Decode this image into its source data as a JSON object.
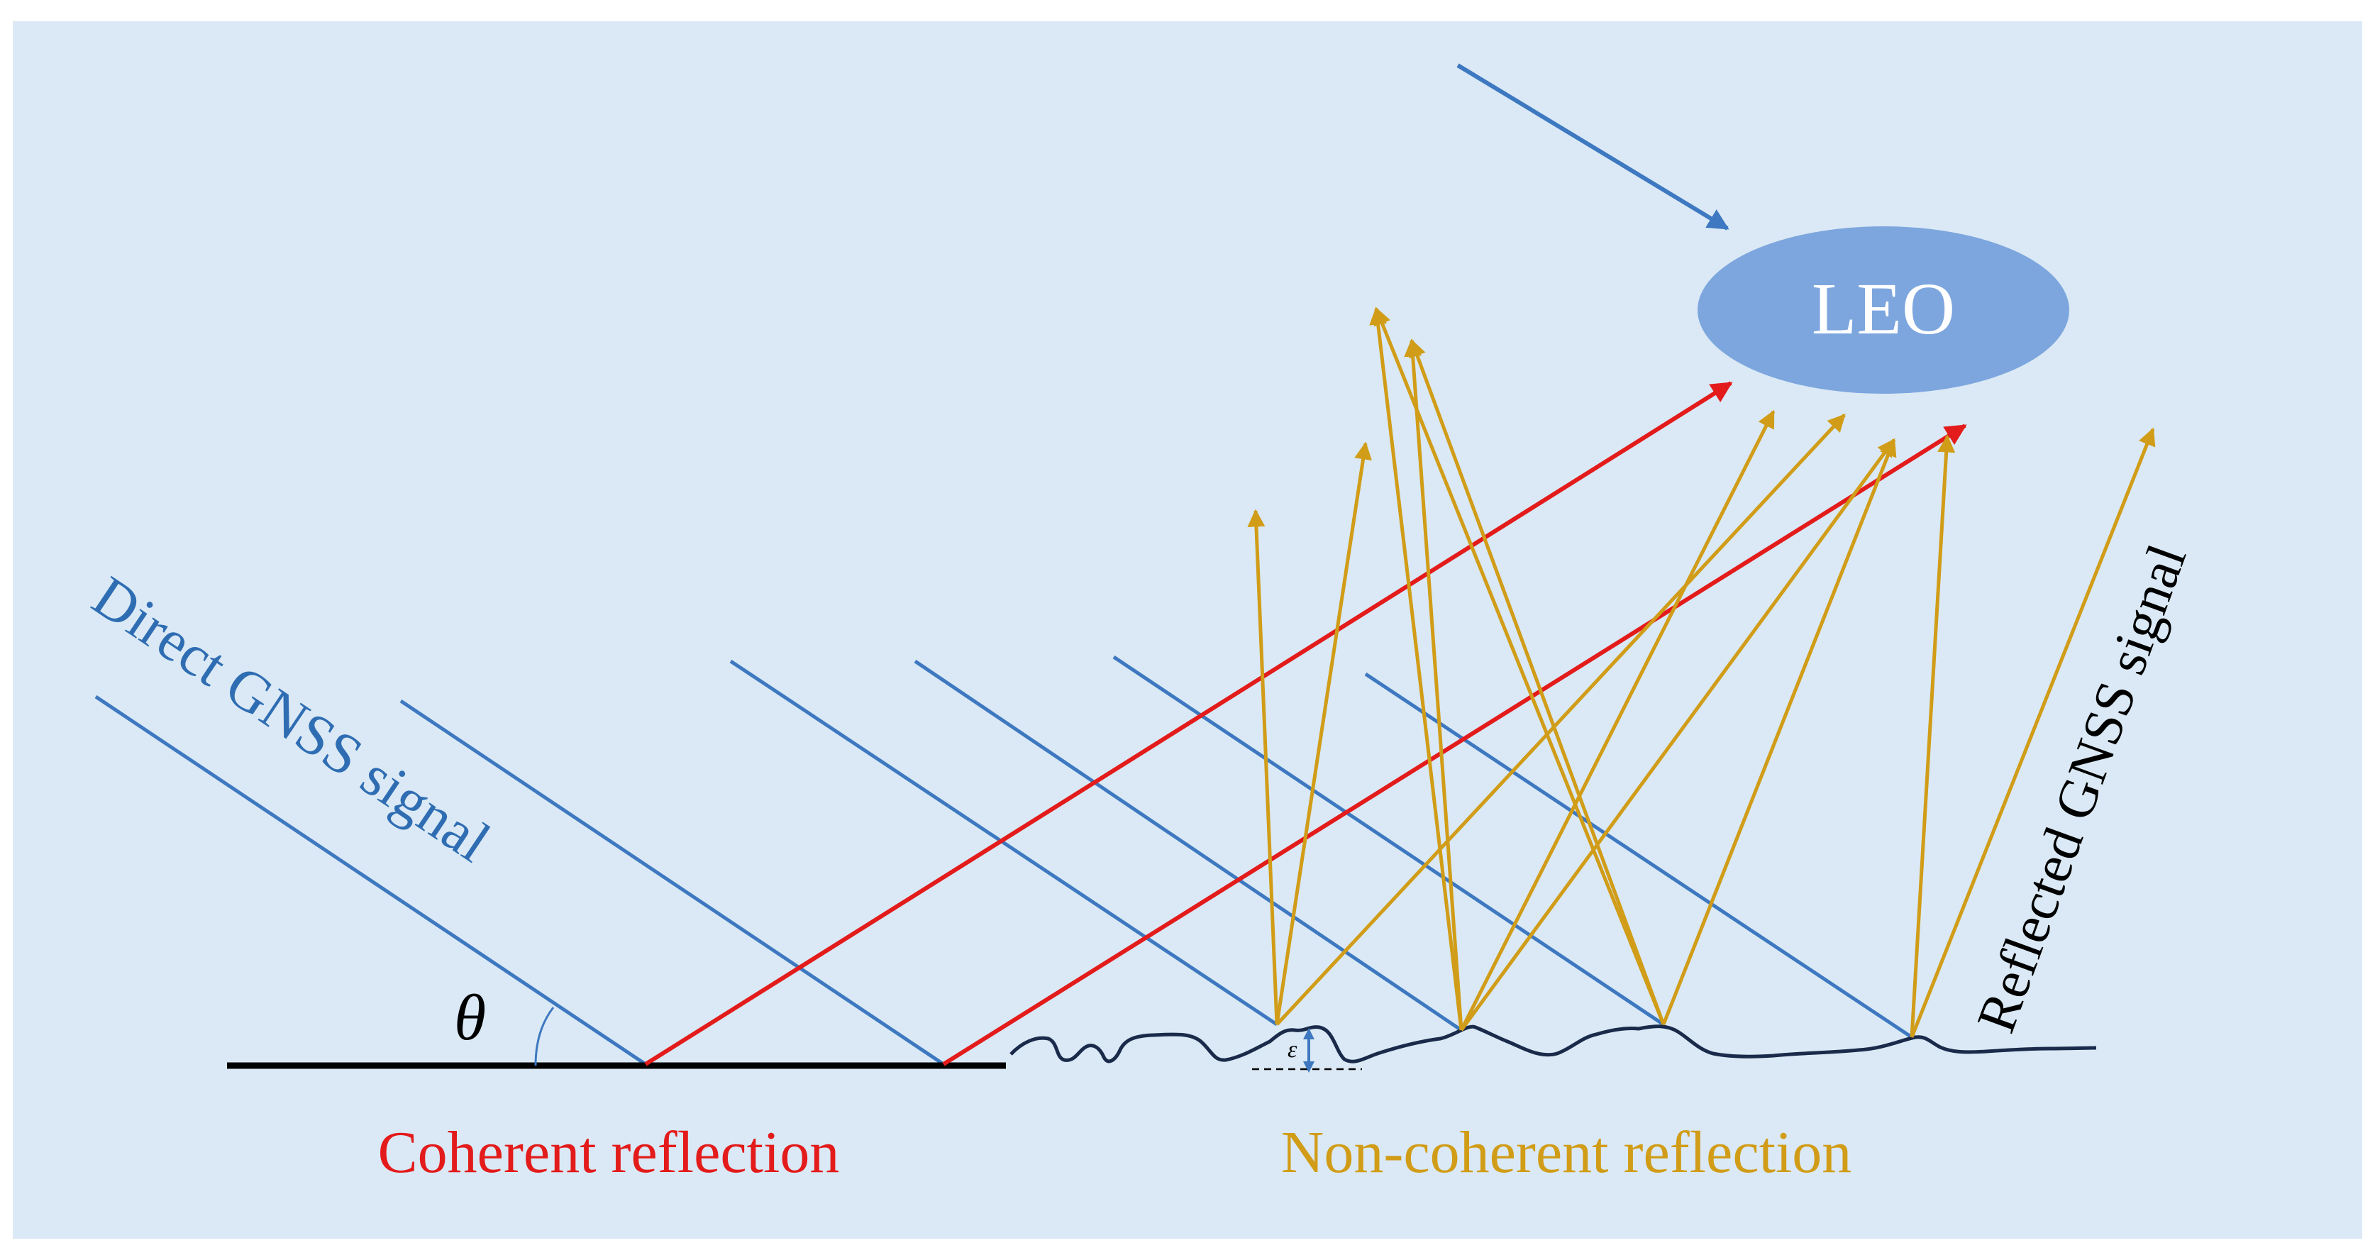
{
  "colors": {
    "panel": "#dae9f5",
    "direct": "#3d78c0",
    "coherent": "#e31b1b",
    "noncoherent": "#d19c17",
    "ground": "#000000",
    "rough": "#1a2a4a",
    "leo_fill": "#7da6de",
    "leo_text": "#ffffff",
    "label_direct": "#2f6db3",
    "label_black": "#000000"
  },
  "labels": {
    "leo": "LEO",
    "direct_signal": "Direct GNSS  signal",
    "reflected_signal": "Reflected GNSS signal",
    "coherent": "Coherent reflection",
    "noncoherent": "Non-coherent reflection",
    "theta": "θ",
    "epsilon": "ε"
  },
  "icons": {
    "incoming_arrow": "arrow-icon",
    "leo_satellite": "ellipse-icon"
  }
}
